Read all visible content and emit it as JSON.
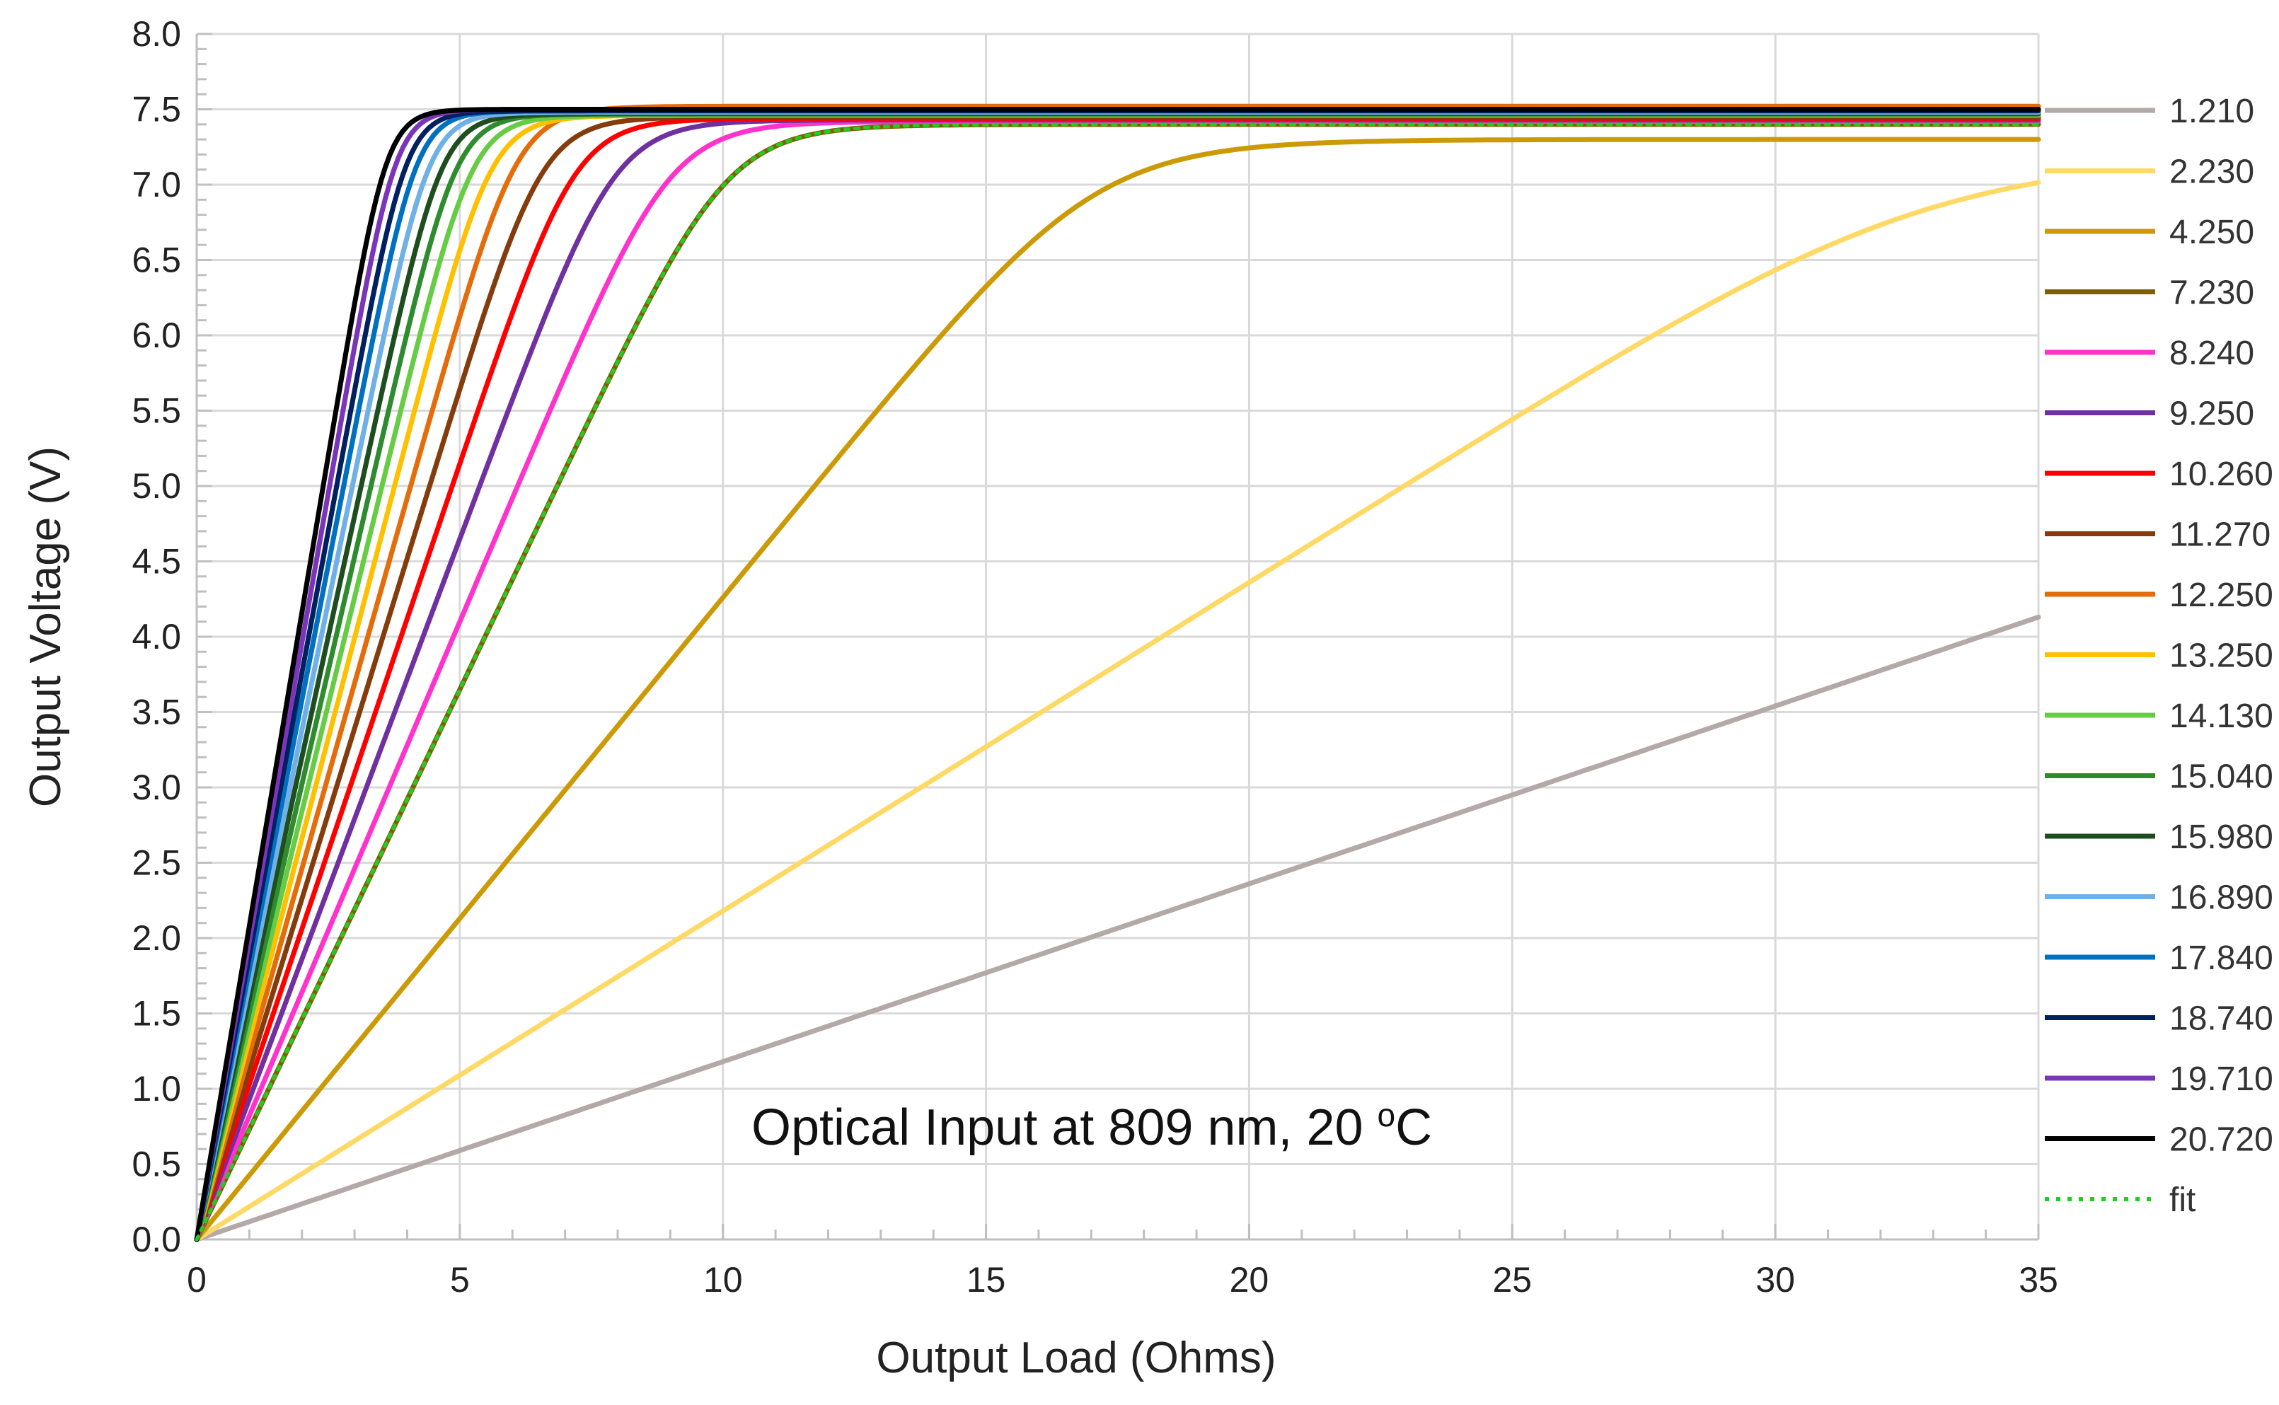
{
  "chart_data": {
    "type": "line",
    "title": "",
    "xlabel": "Output Load (Ohms)",
    "ylabel": "Output Voltage (V)",
    "xlim": [
      0,
      35
    ],
    "ylim": [
      0,
      8.0
    ],
    "x_ticks": [
      0,
      5,
      10,
      15,
      20,
      25,
      30,
      35
    ],
    "y_ticks": [
      "0.0",
      "0.5",
      "1.0",
      "1.5",
      "2.0",
      "2.5",
      "3.0",
      "3.5",
      "4.0",
      "4.5",
      "5.0",
      "5.5",
      "6.0",
      "6.5",
      "7.0",
      "7.5",
      "8.0"
    ],
    "grid": true,
    "legend_position": "right",
    "annotation": {
      "text": "Optical Input at 809 nm, 20 ",
      "superscript": "o",
      "suffix": "C"
    },
    "series": [
      {
        "name": "1.210",
        "color": "#b3a9a9",
        "style": "solid",
        "isc": 0.118,
        "voc": 7.55
      },
      {
        "name": "2.230",
        "color": "#ffd966",
        "style": "solid",
        "isc": 0.218,
        "voc": 7.2
      },
      {
        "name": "4.250",
        "color": "#cc9a06",
        "style": "solid",
        "isc": 0.426,
        "voc": 7.3
      },
      {
        "name": "7.230",
        "color": "#7f6000",
        "style": "solid",
        "isc": 0.73,
        "voc": 7.4
      },
      {
        "name": "8.240",
        "color": "#ff33cc",
        "style": "solid",
        "isc": 0.82,
        "voc": 7.42
      },
      {
        "name": "9.250",
        "color": "#7030a0",
        "style": "solid",
        "isc": 0.93,
        "voc": 7.43
      },
      {
        "name": "10.260",
        "color": "#ff0000",
        "style": "solid",
        "isc": 1.03,
        "voc": 7.44
      },
      {
        "name": "11.270",
        "color": "#843c0c",
        "style": "solid",
        "isc": 1.13,
        "voc": 7.45
      },
      {
        "name": "12.250",
        "color": "#e46c0a",
        "style": "solid",
        "isc": 1.23,
        "voc": 7.52
      },
      {
        "name": "13.250",
        "color": "#ffc000",
        "style": "solid",
        "isc": 1.33,
        "voc": 7.46
      },
      {
        "name": "14.130",
        "color": "#66cc44",
        "style": "solid",
        "isc": 1.42,
        "voc": 7.46
      },
      {
        "name": "15.040",
        "color": "#2e8b2e",
        "style": "solid",
        "isc": 1.51,
        "voc": 7.47
      },
      {
        "name": "15.980",
        "color": "#1e4d1e",
        "style": "solid",
        "isc": 1.6,
        "voc": 7.47
      },
      {
        "name": "16.890",
        "color": "#6fb0e6",
        "style": "solid",
        "isc": 1.69,
        "voc": 7.48
      },
      {
        "name": "17.840",
        "color": "#0070c0",
        "style": "solid",
        "isc": 1.79,
        "voc": 7.49
      },
      {
        "name": "18.740",
        "color": "#002060",
        "style": "solid",
        "isc": 1.88,
        "voc": 7.49
      },
      {
        "name": "19.710",
        "color": "#7b35b8",
        "style": "solid",
        "isc": 1.98,
        "voc": 7.5
      },
      {
        "name": "20.720",
        "color": "#000000",
        "style": "solid",
        "isc": 2.08,
        "voc": 7.5
      },
      {
        "name": "fit",
        "color": "#22cc22",
        "style": "dotted",
        "isc": 0.73,
        "voc": 7.4
      }
    ]
  }
}
